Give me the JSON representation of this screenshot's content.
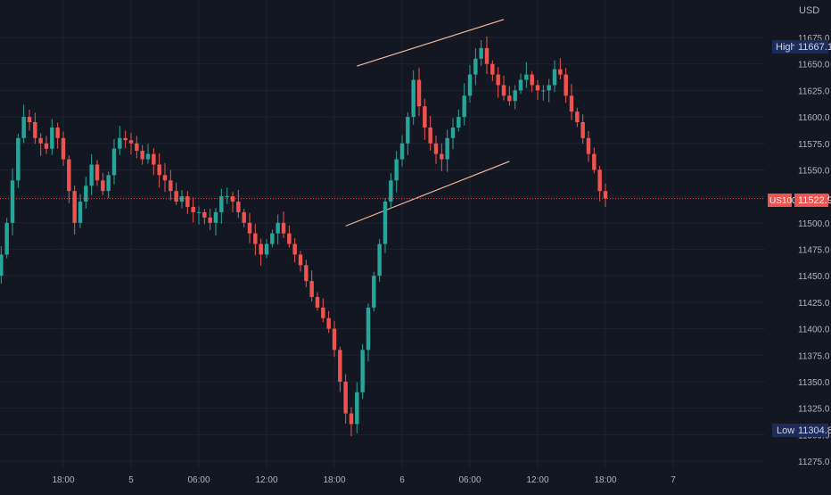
{
  "colors": {
    "background": "#131722",
    "grid": "#1f2330",
    "axis_text": "#b2b5be",
    "up": "#26a69a",
    "down": "#ef5350",
    "trendline": "#f0b9a0",
    "high_badge": "#1c2b5a",
    "low_badge": "#1c2b5a",
    "price_badge": "#ef5350",
    "price_line": "#ef5350"
  },
  "chart_data": {
    "type": "candlestick",
    "symbol": "US100",
    "currency": "USD",
    "interval_hours": 0.5,
    "start_time": "2023-01-04 08:00",
    "ylim": [
      11260,
      11700
    ],
    "y_ticks": [
      11275.0,
      11300.0,
      11325.0,
      11350.0,
      11375.0,
      11400.0,
      11425.0,
      11450.0,
      11475.0,
      11500.0,
      11525.0,
      11550.0,
      11575.0,
      11600.0,
      11625.0,
      11650.0,
      11675.0
    ],
    "x_ticks": [
      {
        "label": "18:00",
        "t": "2023-01-04 18:00"
      },
      {
        "label": "5",
        "t": "2023-01-05 00:00"
      },
      {
        "label": "06:00",
        "t": "2023-01-05 06:00"
      },
      {
        "label": "12:00",
        "t": "2023-01-05 12:00"
      },
      {
        "label": "18:00",
        "t": "2023-01-05 18:00"
      },
      {
        "label": "6",
        "t": "2023-01-06 00:00"
      },
      {
        "label": "06:00",
        "t": "2023-01-06 06:00"
      },
      {
        "label": "12:00",
        "t": "2023-01-06 12:00"
      },
      {
        "label": "18:00",
        "t": "2023-01-06 18:00"
      },
      {
        "label": "7",
        "t": "2023-01-07 00:00"
      }
    ],
    "high": {
      "label": "High",
      "value": "11667.1"
    },
    "low": {
      "label": "Low",
      "value": "11304.8"
    },
    "last": {
      "label": "US100",
      "value": "11522.9"
    },
    "close_path": [
      11450,
      11455,
      11445,
      11450,
      11462,
      11455,
      11450,
      11440,
      11450,
      11470,
      11500,
      11540,
      11580,
      11600,
      11595,
      11580,
      11575,
      11570,
      11590,
      11580,
      11560,
      11530,
      11500,
      11520,
      11535,
      11555,
      11540,
      11530,
      11545,
      11570,
      11580,
      11578,
      11575,
      11568,
      11560,
      11565,
      11555,
      11545,
      11540,
      11530,
      11520,
      11525,
      11515,
      11510,
      11510,
      11505,
      11500,
      11510,
      11525,
      11525,
      11520,
      11510,
      11500,
      11490,
      11480,
      11470,
      11480,
      11490,
      11500,
      11490,
      11480,
      11470,
      11460,
      11445,
      11430,
      11420,
      11410,
      11400,
      11380,
      11350,
      11320,
      11310,
      11340,
      11380,
      11420,
      11450,
      11480,
      11520,
      11540,
      11560,
      11575,
      11600,
      11635,
      11610,
      11590,
      11575,
      11565,
      11560,
      11580,
      11590,
      11600,
      11620,
      11640,
      11655,
      11665,
      11650,
      11640,
      11630,
      11620,
      11615,
      11625,
      11635,
      11640,
      11630,
      11625,
      11625,
      11630,
      11645,
      11640,
      11620,
      11605,
      11595,
      11580,
      11565,
      11550,
      11530,
      11523
    ],
    "trendlines": [
      {
        "name": "channel-upper",
        "points": [
          [
            "2023-01-05 20:00",
            11648
          ],
          [
            "2023-01-06 09:00",
            11692
          ]
        ]
      },
      {
        "name": "channel-lower",
        "points": [
          [
            "2023-01-05 19:00",
            11497
          ],
          [
            "2023-01-06 09:30",
            11558
          ]
        ]
      },
      {
        "name": "left-level",
        "points": [
          [
            "2023-01-04 08:00",
            11486
          ],
          [
            "2023-01-04 09:30",
            11484
          ]
        ]
      }
    ]
  }
}
